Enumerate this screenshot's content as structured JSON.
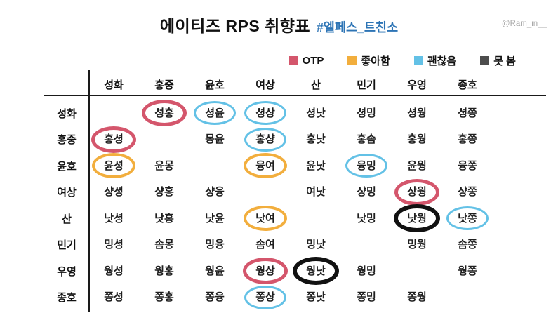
{
  "page": {
    "title_main": "에이티즈 RPS 취향표",
    "title_hashtag": "#엘페스_트친소",
    "watermark": "@Ram_in__"
  },
  "colors": {
    "otp_red": "#d4566c",
    "like_orange": "#f2ae3d",
    "ok_blue": "#63c1e6",
    "no_black": "#111111",
    "legend_no_square_gray": "#4d4d4d",
    "hashtag_blue": "#2d74b5",
    "table_line": "#1a1a1a"
  },
  "chart_data": {
    "type": "table",
    "title": "에이티즈 RPS 취향표",
    "hashtag": "#엘페스_트친소",
    "legend": [
      {
        "label": "OTP",
        "mark": "otp",
        "color": "#d4566c"
      },
      {
        "label": "좋아함",
        "mark": "like",
        "color": "#f2ae3d"
      },
      {
        "label": "괜찮음",
        "mark": "ok",
        "color": "#63c1e6"
      },
      {
        "label": "못 봄",
        "mark": "no",
        "color": "#4d4d4d"
      }
    ],
    "columns": [
      "성화",
      "홍중",
      "윤호",
      "여상",
      "산",
      "민기",
      "우영",
      "종호"
    ],
    "rows": [
      {
        "header": "성화",
        "cells": [
          {
            "text": ""
          },
          {
            "text": "성홍",
            "mark": "otp"
          },
          {
            "text": "셩윤",
            "mark": "ok"
          },
          {
            "text": "셩상",
            "mark": "ok"
          },
          {
            "text": "셩낫"
          },
          {
            "text": "셩밍"
          },
          {
            "text": "셩웡"
          },
          {
            "text": "셩쫑"
          }
        ]
      },
      {
        "header": "홍중",
        "cells": [
          {
            "text": "홍셩",
            "mark": "otp"
          },
          {
            "text": ""
          },
          {
            "text": "몽윤"
          },
          {
            "text": "홍샹",
            "mark": "ok"
          },
          {
            "text": "홍낫"
          },
          {
            "text": "홍솜"
          },
          {
            "text": "홍웡"
          },
          {
            "text": "홍쫑"
          }
        ]
      },
      {
        "header": "윤호",
        "cells": [
          {
            "text": "윤셩",
            "mark": "like"
          },
          {
            "text": "윤몽"
          },
          {
            "text": ""
          },
          {
            "text": "융여",
            "mark": "like"
          },
          {
            "text": "윤낫"
          },
          {
            "text": "융밍",
            "mark": "ok"
          },
          {
            "text": "윤웡"
          },
          {
            "text": "융쫑"
          }
        ]
      },
      {
        "header": "여상",
        "cells": [
          {
            "text": "샹셩"
          },
          {
            "text": "샹홍"
          },
          {
            "text": "샹융"
          },
          {
            "text": ""
          },
          {
            "text": "여낫"
          },
          {
            "text": "샹밍"
          },
          {
            "text": "상웡",
            "mark": "otp"
          },
          {
            "text": "샹쫑"
          }
        ]
      },
      {
        "header": "산",
        "cells": [
          {
            "text": "낫셩"
          },
          {
            "text": "낫홍"
          },
          {
            "text": "낫윤"
          },
          {
            "text": "낫여",
            "mark": "like"
          },
          {
            "text": ""
          },
          {
            "text": "낫밍"
          },
          {
            "text": "낫웡",
            "mark": "no"
          },
          {
            "text": "낫쫑",
            "mark": "ok"
          }
        ]
      },
      {
        "header": "민기",
        "cells": [
          {
            "text": "밍셩"
          },
          {
            "text": "솜몽"
          },
          {
            "text": "밍융"
          },
          {
            "text": "솜여"
          },
          {
            "text": "밍낫"
          },
          {
            "text": ""
          },
          {
            "text": "밍웡"
          },
          {
            "text": "솜쫑"
          }
        ]
      },
      {
        "header": "우영",
        "cells": [
          {
            "text": "웡셩"
          },
          {
            "text": "웡홍"
          },
          {
            "text": "웡윤"
          },
          {
            "text": "웡상",
            "mark": "otp"
          },
          {
            "text": "웡낫",
            "mark": "no"
          },
          {
            "text": "웡밍"
          },
          {
            "text": ""
          },
          {
            "text": "웡쫑"
          }
        ]
      },
      {
        "header": "종호",
        "cells": [
          {
            "text": "쫑셩"
          },
          {
            "text": "쫑홍"
          },
          {
            "text": "쫑융"
          },
          {
            "text": "쫑상",
            "mark": "ok"
          },
          {
            "text": "쫑낫"
          },
          {
            "text": "쫑밍"
          },
          {
            "text": "쫑웡"
          },
          {
            "text": ""
          }
        ]
      }
    ]
  }
}
